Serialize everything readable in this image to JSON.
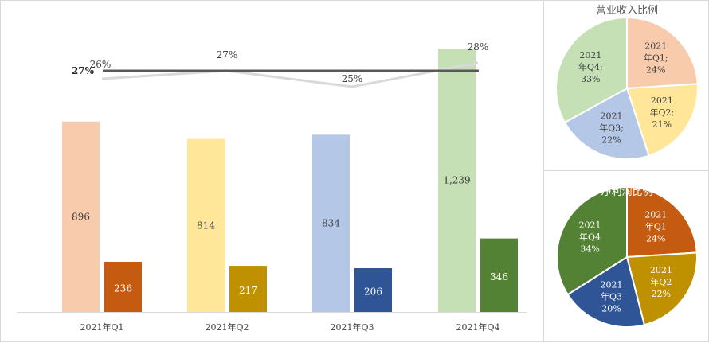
{
  "chart_data": [
    {
      "type": "bar",
      "categories": [
        "2021年Q1",
        "2021年Q2",
        "2021年Q3",
        "2021年Q4"
      ],
      "series": [
        {
          "values": [
            896,
            814,
            834,
            1239
          ],
          "value_labels": [
            "896",
            "814",
            "834",
            "1,239"
          ],
          "colors": [
            "#f8cbad",
            "#ffe699",
            "#b4c7e7",
            "#c5e0b4"
          ]
        },
        {
          "values": [
            236,
            217,
            206,
            346
          ],
          "value_labels": [
            "236",
            "217",
            "206",
            "346"
          ],
          "colors": [
            "#c55a11",
            "#bf9000",
            "#2f5597",
            "#548235"
          ]
        },
        {
          "type": "line",
          "values": [
            26,
            27,
            25,
            28
          ],
          "value_labels": [
            "26%",
            "27%",
            "25%",
            "28%"
          ],
          "color": "#d9d9d9"
        }
      ],
      "average_line": {
        "value": 27,
        "label": "27%",
        "color": "#595959"
      }
    },
    {
      "type": "pie",
      "title": "营业收入比例",
      "slices": [
        {
          "label": [
            "2021",
            "年Q1;",
            "24%"
          ],
          "value": 24,
          "color": "#f8cbad"
        },
        {
          "label": [
            "2021",
            "年Q2;",
            "21%"
          ],
          "value": 21,
          "color": "#ffe699"
        },
        {
          "label": [
            "2021",
            "年Q3;",
            "22%"
          ],
          "value": 22,
          "color": "#b4c7e7"
        },
        {
          "label": [
            "2021",
            "年Q4;",
            "33%"
          ],
          "value": 33,
          "color": "#c5e0b4"
        }
      ]
    },
    {
      "type": "pie",
      "title": "净利润比例",
      "slices": [
        {
          "label": [
            "2021",
            "年Q1",
            "24%"
          ],
          "value": 24,
          "color": "#c55a11"
        },
        {
          "label": [
            "2021",
            "年Q2",
            "22%"
          ],
          "value": 22,
          "color": "#bf9000"
        },
        {
          "label": [
            "2021",
            "年Q3",
            "20%"
          ],
          "value": 20,
          "color": "#2f5597"
        },
        {
          "label": [
            "2021",
            "年Q4",
            "34%"
          ],
          "value": 34,
          "color": "#548235"
        }
      ]
    }
  ]
}
